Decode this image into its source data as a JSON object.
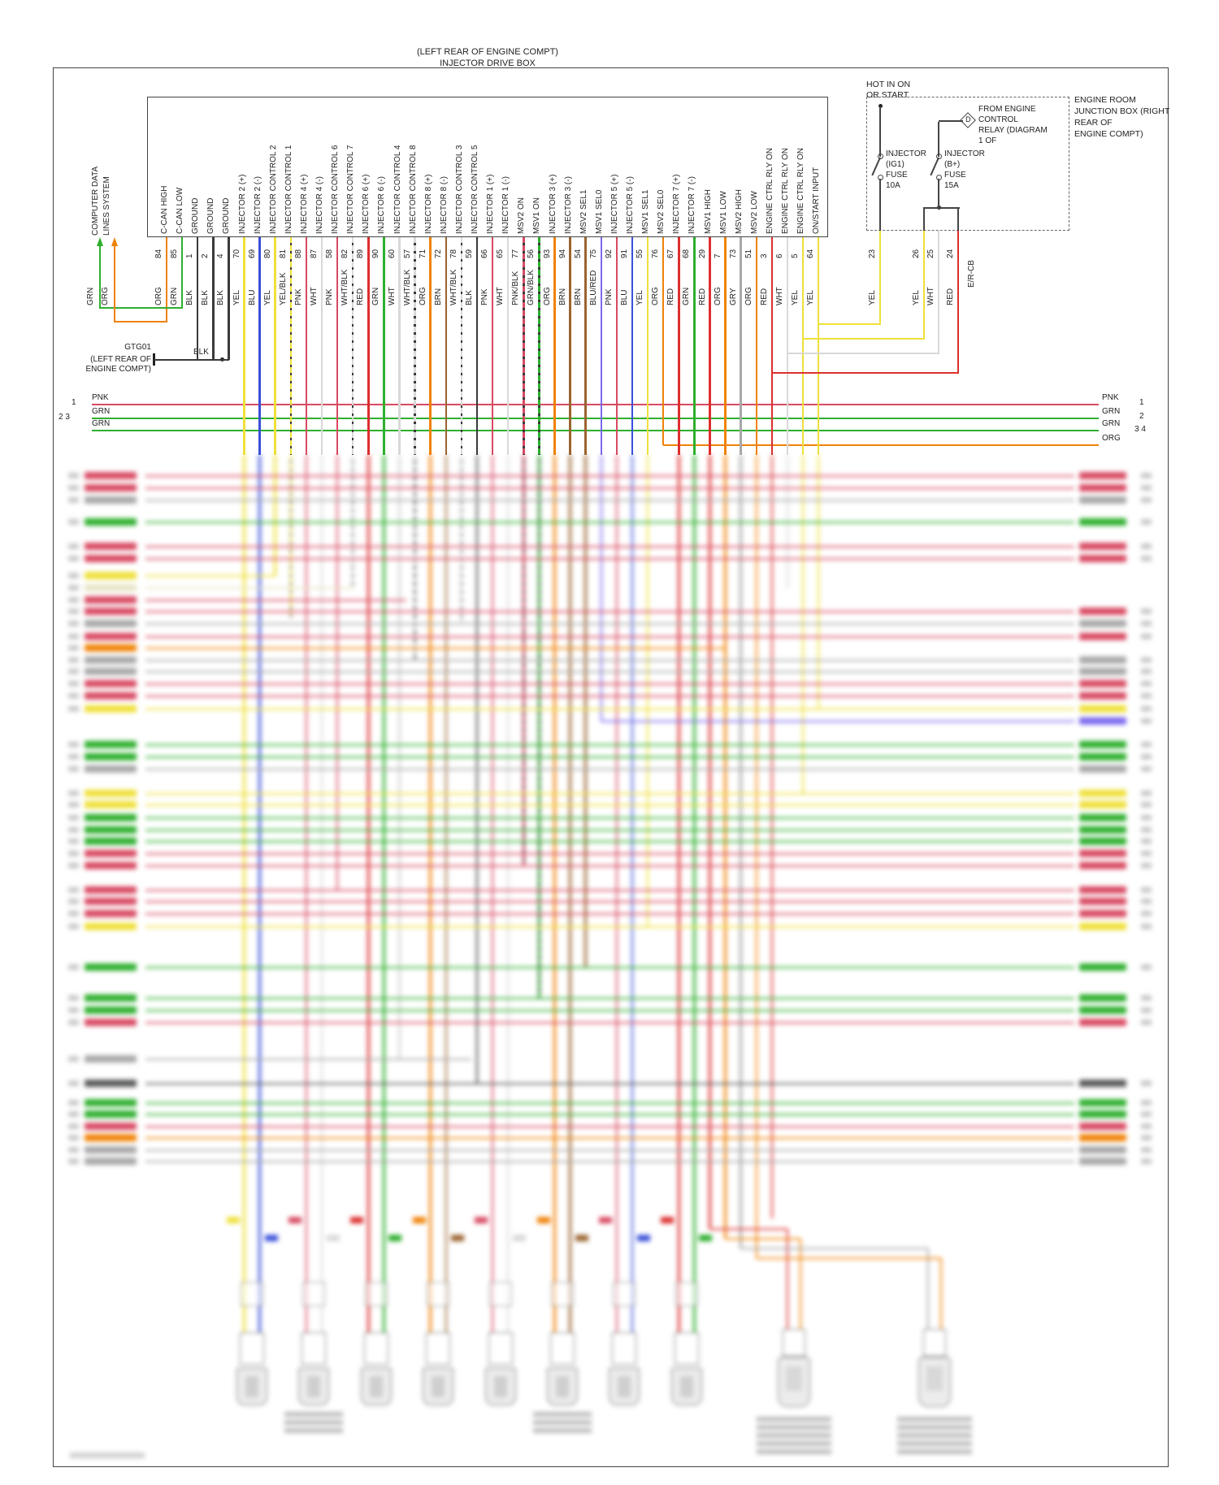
{
  "colors": {
    "ORG": "#f08207",
    "GRN": "#2eaf2e",
    "BLK": "#3a3a3a",
    "YEL": "#efe03a",
    "BLU": "#3a50d9",
    "PNK": "#d84a62",
    "WHT": "#d9d9d9",
    "RED": "#dd2f2f",
    "BRN": "#9a6430",
    "GRY": "#a8a8a8",
    "PURPLE": "#7b68ee",
    "CREAM": "#e9e5c8",
    "DARK": "#5a5a5a",
    "DK": "#444444"
  },
  "header": {
    "box_location": "(LEFT REAR OF ENGINE COMPT)",
    "box_title": "INJECTOR DRIVE BOX"
  },
  "computer_data": {
    "label_line1": "COMPUTER DATA",
    "label_line2": "LINES SYSTEM",
    "wire1": "GRN",
    "wire2": "ORG"
  },
  "ground": {
    "id": "GTG01",
    "location_line1": "(LEFT REAR OF",
    "location_line2": "ENGINE COMPT)",
    "wire": "BLK"
  },
  "pins": [
    {
      "signal": "C-CAN HIGH",
      "pin": "84",
      "color": "ORG"
    },
    {
      "signal": "C-CAN LOW",
      "pin": "85",
      "color": "GRN"
    },
    {
      "signal": "GROUND",
      "pin": "1",
      "color": "BLK"
    },
    {
      "signal": "GROUND",
      "pin": "2",
      "color": "BLK"
    },
    {
      "signal": "GROUND",
      "pin": "4",
      "color": "BLK"
    },
    {
      "signal": "INJECTOR 2 (+)",
      "pin": "70",
      "color": "YEL"
    },
    {
      "signal": "INJECTOR 2 (-)",
      "pin": "69",
      "color": "BLU"
    },
    {
      "signal": "INJECTOR CONTROL 2",
      "pin": "80",
      "color": "YEL"
    },
    {
      "signal": "INJECTOR CONTROL 1",
      "pin": "81",
      "color": "YEL/BLK"
    },
    {
      "signal": "INJECTOR 4 (+)",
      "pin": "88",
      "color": "PNK"
    },
    {
      "signal": "INJECTOR 4 (-)",
      "pin": "87",
      "color": "WHT"
    },
    {
      "signal": "INJECTOR CONTROL 6",
      "pin": "58",
      "color": "PNK"
    },
    {
      "signal": "INJECTOR CONTROL 7",
      "pin": "82",
      "color": "WHT/BLK"
    },
    {
      "signal": "INJECTOR 6 (+)",
      "pin": "89",
      "color": "RED"
    },
    {
      "signal": "INJECTOR 6 (-)",
      "pin": "90",
      "color": "GRN"
    },
    {
      "signal": "INJECTOR CONTROL 4",
      "pin": "60",
      "color": "WHT"
    },
    {
      "signal": "INJECTOR CONTROL 8",
      "pin": "57",
      "color": "WHT/BLK"
    },
    {
      "signal": "INJECTOR 8 (+)",
      "pin": "71",
      "color": "ORG"
    },
    {
      "signal": "INJECTOR 8 (-)",
      "pin": "72",
      "color": "BRN"
    },
    {
      "signal": "INJECTOR CONTROL 3",
      "pin": "78",
      "color": "WHT/BLK"
    },
    {
      "signal": "INJECTOR CONTROL 5",
      "pin": "59",
      "color": "BLK"
    },
    {
      "signal": "INJECTOR 1 (+)",
      "pin": "66",
      "color": "PNK"
    },
    {
      "signal": "INJECTOR 1 (-)",
      "pin": "65",
      "color": "WHT"
    },
    {
      "signal": "MSV2 ON",
      "pin": "77",
      "color": "PNK/BLK"
    },
    {
      "signal": "MSV1 ON",
      "pin": "56",
      "color": "GRN/BLK"
    },
    {
      "signal": "INJECTOR 3 (+)",
      "pin": "93",
      "color": "ORG"
    },
    {
      "signal": "INJECTOR 3 (-)",
      "pin": "94",
      "color": "BRN"
    },
    {
      "signal": "MSV2 SEL1",
      "pin": "54",
      "color": "BRN"
    },
    {
      "signal": "MSV1 SEL0",
      "pin": "75",
      "color": "BLU/RED"
    },
    {
      "signal": "INJECTOR 5 (+)",
      "pin": "92",
      "color": "PNK"
    },
    {
      "signal": "INJECTOR 5 (-)",
      "pin": "91",
      "color": "BLU"
    },
    {
      "signal": "MSV1 SEL1",
      "pin": "55",
      "color": "YEL"
    },
    {
      "signal": "MSV2 SEL0",
      "pin": "76",
      "color": "ORG"
    },
    {
      "signal": "INJECTOR 7 (+)",
      "pin": "67",
      "color": "RED"
    },
    {
      "signal": "INJECTOR 7 (-)",
      "pin": "68",
      "color": "GRN"
    },
    {
      "signal": "MSV1 HIGH",
      "pin": "29",
      "color": "RED"
    },
    {
      "signal": "MSV1 LOW",
      "pin": "7",
      "color": "ORG"
    },
    {
      "signal": "MSV2 HIGH",
      "pin": "73",
      "color": "GRY"
    },
    {
      "signal": "MSV2 LOW",
      "pin": "51",
      "color": "ORG"
    },
    {
      "signal": "ENGINE CTRL RLY ON",
      "pin": "3",
      "color": "RED"
    },
    {
      "signal": "ENGINE CTRL RLY ON",
      "pin": "6",
      "color": "WHT"
    },
    {
      "signal": "ENGINE CTRL RLY ON",
      "pin": "5",
      "color": "YEL"
    },
    {
      "signal": "ON/START INPUT",
      "pin": "64",
      "color": "YEL"
    }
  ],
  "power": {
    "hot_label_line1": "HOT IN ON",
    "hot_label_line2": "OR START",
    "fuse1": {
      "name_lines": [
        "INJECTOR",
        "(IG1)",
        "FUSE",
        "10A"
      ]
    },
    "fuse2": {
      "name_lines": [
        "INJECTOR",
        "(B+)",
        "FUSE",
        "15A"
      ]
    },
    "relay_symbol": "D",
    "relay_note_lines": [
      "FROM ENGINE",
      "CONTROL",
      "RELAY (DIAGRAM",
      "1 OF"
    ],
    "junction_note_lines": [
      "ENGINE ROOM",
      "JUNCTION BOX (RIGHT",
      "REAR OF",
      "ENGINE COMPT)"
    ],
    "pins": [
      {
        "pin": "23",
        "color": "YEL"
      },
      {
        "pin": "26",
        "color": "YEL"
      },
      {
        "pin": "25",
        "color": "WHT"
      },
      {
        "pin": "24",
        "color": "RED"
      }
    ],
    "breaker_label": "E/R-CB"
  },
  "buses": [
    {
      "color": "PNK",
      "left_num": "1",
      "left_color": "PNK",
      "right_color": "PNK",
      "right_num": "1"
    },
    {
      "color": "GRN",
      "left_num": "2 3",
      "left_color": "GRN",
      "right_color": "GRN",
      "right_num": "2"
    },
    {
      "color": "GRN",
      "left_num": "",
      "left_color": "GRN",
      "right_color": "GRN",
      "right_num": "3 4"
    },
    {
      "color": "ORG",
      "left_num": "",
      "left_color": "",
      "right_color": "ORG",
      "right_num": ""
    }
  ]
}
